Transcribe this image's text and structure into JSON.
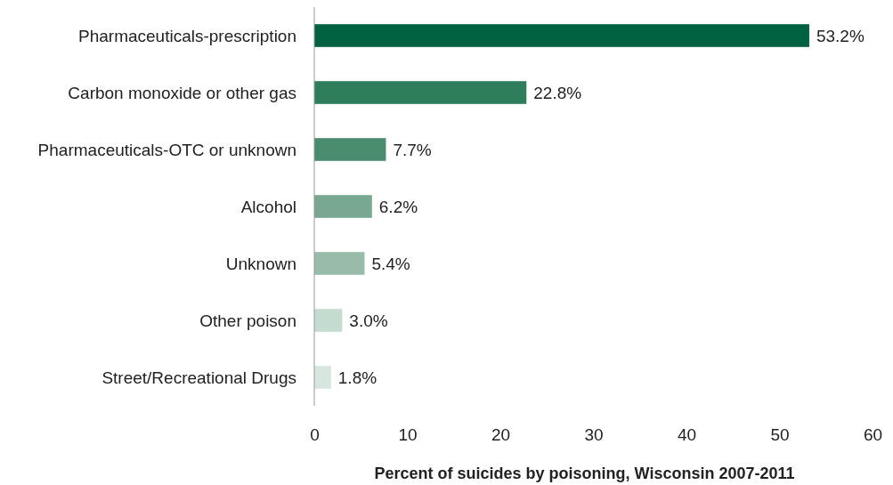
{
  "chart_data": {
    "type": "bar",
    "orientation": "horizontal",
    "xlabel": "Percent of suicides by poisoning, Wisconsin 2007-2011",
    "categories": [
      "Pharmaceuticals-prescription",
      "Carbon monoxide or other gas",
      "Pharmaceuticals-OTC or unknown",
      "Alcohol",
      "Unknown",
      "Other poison",
      "Street/Recreational Drugs"
    ],
    "values": [
      53.2,
      22.8,
      7.7,
      6.2,
      5.4,
      3.0,
      1.8
    ],
    "colors": [
      "#006241",
      "#2e7d5b",
      "#4a8c6e",
      "#78a892",
      "#98bca9",
      "#c4dcd0",
      "#d7e6de"
    ],
    "value_labels": [
      "53.2%",
      "22.8%",
      "7.7%",
      "6.2%",
      "5.4%",
      "3.0%",
      "1.8%"
    ],
    "xlim": [
      0,
      60
    ],
    "xticks": [
      0,
      10,
      20,
      30,
      40,
      50,
      60
    ]
  }
}
